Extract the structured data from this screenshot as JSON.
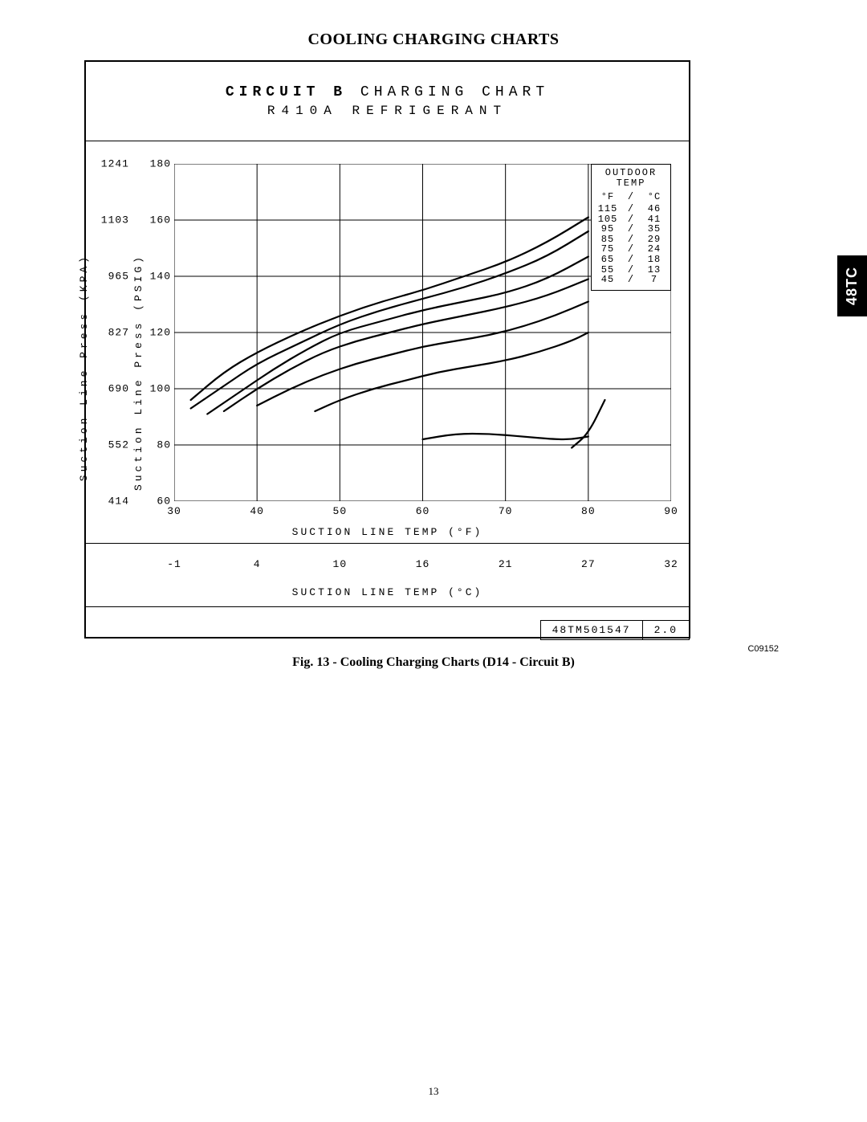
{
  "page": {
    "section_title": "COOLING CHARGING CHARTS",
    "side_tab": "48TC",
    "fig_caption": "Fig. 13 - Cooling Charging Charts (D14 - Circuit B)",
    "image_code": "C09152",
    "page_number": "13"
  },
  "chart": {
    "title_bold": "CIRCUIT B",
    "title_rest": " CHARGING CHART",
    "subtitle": "R410A REFRIGERANT",
    "x_axis_f": {
      "label": "SUCTION LINE TEMP (°F)",
      "min": 30,
      "max": 90,
      "ticks": [
        30,
        40,
        50,
        60,
        70,
        80,
        90
      ]
    },
    "x_axis_c": {
      "label": "SUCTION LINE TEMP (°C)",
      "ticks": [
        -1,
        4,
        10,
        16,
        21,
        27,
        32
      ]
    },
    "y_axis_psig": {
      "label": "Suction Line Press (PSIG)",
      "min": 60,
      "max": 180,
      "ticks": [
        60,
        80,
        100,
        120,
        140,
        160,
        180
      ]
    },
    "y_axis_kpa": {
      "label": "Suction Line Press (KPA)",
      "ticks": [
        414,
        552,
        690,
        827,
        965,
        1103,
        1241
      ]
    },
    "grid_color": "#000000",
    "curve_color": "#000000",
    "curve_width": 2.2,
    "curves": [
      {
        "f": 115,
        "c": 46,
        "points": [
          [
            32,
            96
          ],
          [
            36,
            106
          ],
          [
            40,
            113
          ],
          [
            45,
            120
          ],
          [
            50,
            126
          ],
          [
            55,
            131
          ],
          [
            60,
            135
          ],
          [
            65,
            140
          ],
          [
            70,
            145
          ],
          [
            75,
            152
          ],
          [
            80,
            161
          ]
        ]
      },
      {
        "f": 105,
        "c": 41,
        "points": [
          [
            32,
            93
          ],
          [
            36,
            101
          ],
          [
            40,
            109
          ],
          [
            45,
            116
          ],
          [
            50,
            123
          ],
          [
            55,
            128
          ],
          [
            60,
            132
          ],
          [
            65,
            136
          ],
          [
            70,
            141
          ],
          [
            75,
            147
          ],
          [
            80,
            156
          ]
        ]
      },
      {
        "f": 95,
        "c": 35,
        "points": [
          [
            34,
            91
          ],
          [
            38,
            99
          ],
          [
            42,
            107
          ],
          [
            46,
            114
          ],
          [
            50,
            120
          ],
          [
            55,
            124
          ],
          [
            60,
            128
          ],
          [
            65,
            131
          ],
          [
            70,
            134
          ],
          [
            75,
            139
          ],
          [
            80,
            147
          ]
        ]
      },
      {
        "f": 85,
        "c": 29,
        "points": [
          [
            36,
            92
          ],
          [
            40,
            100
          ],
          [
            44,
            107
          ],
          [
            48,
            113
          ],
          [
            52,
            117
          ],
          [
            56,
            120
          ],
          [
            60,
            123
          ],
          [
            65,
            126
          ],
          [
            70,
            129
          ],
          [
            75,
            133
          ],
          [
            80,
            139
          ]
        ]
      },
      {
        "f": 75,
        "c": 24,
        "points": [
          [
            40,
            94
          ],
          [
            44,
            100
          ],
          [
            48,
            105
          ],
          [
            52,
            109
          ],
          [
            56,
            112
          ],
          [
            60,
            115
          ],
          [
            64,
            117
          ],
          [
            68,
            119
          ],
          [
            72,
            122
          ],
          [
            76,
            126
          ],
          [
            80,
            131
          ]
        ]
      },
      {
        "f": 65,
        "c": 18,
        "points": [
          [
            47,
            92
          ],
          [
            50,
            96
          ],
          [
            54,
            100
          ],
          [
            58,
            103
          ],
          [
            62,
            106
          ],
          [
            66,
            108
          ],
          [
            70,
            110
          ],
          [
            74,
            113
          ],
          [
            78,
            117
          ],
          [
            80,
            120
          ]
        ]
      },
      {
        "f": 55,
        "c": 13,
        "points": [
          [
            60,
            82
          ],
          [
            64,
            84
          ],
          [
            68,
            84
          ],
          [
            72,
            83
          ],
          [
            76,
            82
          ],
          [
            78,
            82
          ],
          [
            80,
            83
          ]
        ]
      },
      {
        "f": 45,
        "c": 7,
        "points": [
          [
            78,
            79
          ],
          [
            80,
            84
          ],
          [
            82,
            96
          ]
        ]
      }
    ],
    "legend": {
      "title_l1": "OUTDOOR",
      "title_l2": "TEMP",
      "f_hdr": "°F",
      "sep": "/",
      "c_hdr": "°C"
    },
    "docnum": "48TM501547",
    "docrev": "2.0"
  }
}
